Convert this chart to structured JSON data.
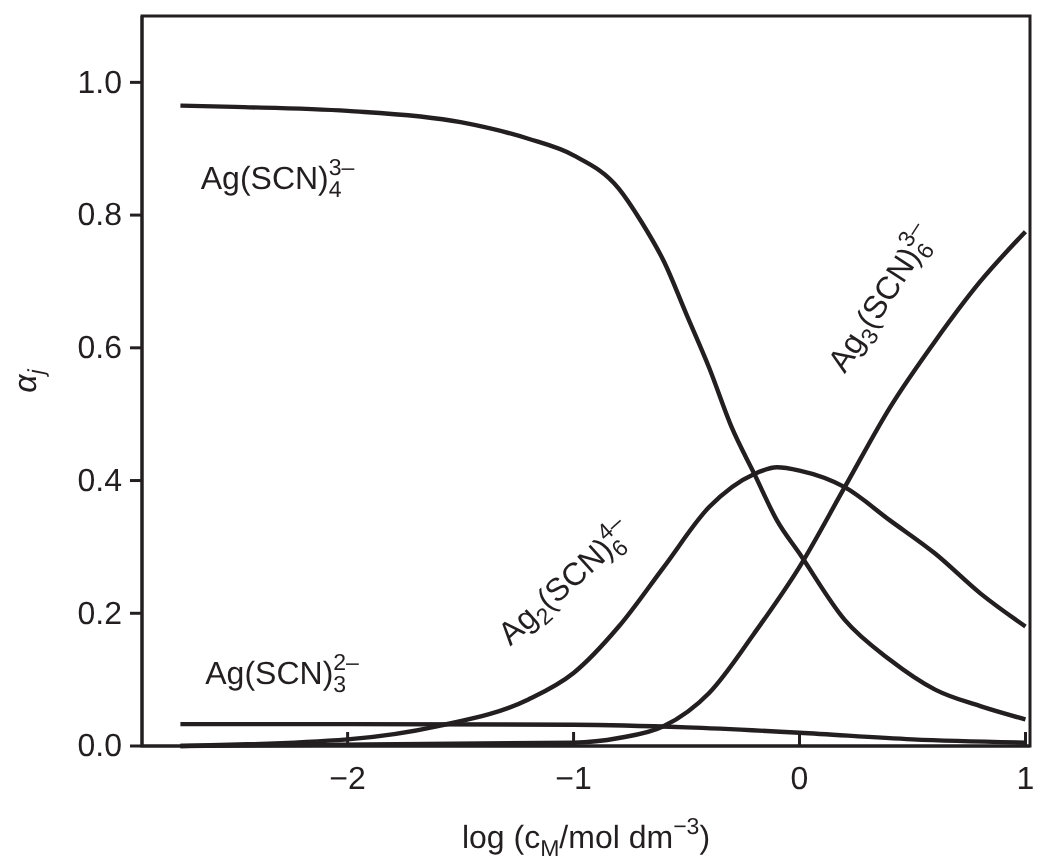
{
  "chart_data": {
    "type": "line",
    "xlabel": "log (c$_{M}$/mol dm$^{−3}$)",
    "ylabel": "α$_{j}$",
    "xlim": [
      -2.91,
      1.02
    ],
    "ylim": [
      0,
      1.1
    ],
    "xticks": [
      {
        "value": -2,
        "label": "−2"
      },
      {
        "value": -1,
        "label": "−1"
      },
      0,
      1
    ],
    "yticks": [
      {
        "value": 0,
        "label": "0.0"
      },
      0.2,
      0.4,
      0.6,
      0.8,
      {
        "value": 1,
        "label": "1.0"
      }
    ],
    "grid": false,
    "legend": false,
    "marker": "none",
    "line_style": "solid",
    "series": [
      {
        "name": "Ag(SCN)$_{4}$$^{3–}$",
        "color": "#231f20",
        "x": [
          -2.74,
          -2.5,
          -2,
          -1.5,
          -1.2,
          -1,
          -0.8,
          -0.7,
          -0.6,
          -0.5,
          -0.4,
          -0.3,
          -0.2,
          -0.1,
          0,
          0.2,
          0.4,
          0.6,
          0.8,
          1.0
        ],
        "values": [
          0.965,
          0.963,
          0.957,
          0.94,
          0.915,
          0.89,
          0.84,
          0.79,
          0.73,
          0.65,
          0.57,
          0.48,
          0.41,
          0.34,
          0.29,
          0.19,
          0.13,
          0.085,
          0.06,
          0.04
        ]
      },
      {
        "name": "Ag(SCN)$_{3}$$^{2–}$",
        "color": "#231f20",
        "x": [
          -2.74,
          -2,
          -1,
          -0.5,
          0,
          0.5,
          1.0
        ],
        "values": [
          0.033,
          0.033,
          0.032,
          0.028,
          0.02,
          0.01,
          0.005
        ]
      },
      {
        "name": "Ag$_{2}$(SCN)$_{6}$$^{4–}$",
        "color": "#231f20",
        "x": [
          -2.74,
          -2,
          -1.6,
          -1.2,
          -1,
          -0.8,
          -0.6,
          -0.4,
          -0.2,
          -0.1,
          0,
          0.2,
          0.4,
          0.6,
          0.8,
          1.0
        ],
        "values": [
          0.0,
          0.01,
          0.03,
          0.07,
          0.11,
          0.18,
          0.27,
          0.36,
          0.41,
          0.42,
          0.415,
          0.39,
          0.34,
          0.29,
          0.23,
          0.18
        ]
      },
      {
        "name": "Ag$_{3}$(SCN)$_{6}$$^{3–}$",
        "color": "#231f20",
        "x": [
          -2.74,
          -1,
          -0.8,
          -0.6,
          -0.4,
          -0.2,
          0,
          0.2,
          0.4,
          0.6,
          0.8,
          1.0
        ],
        "values": [
          0,
          0.005,
          0.012,
          0.03,
          0.08,
          0.17,
          0.27,
          0.39,
          0.51,
          0.61,
          0.7,
          0.775
        ]
      }
    ]
  }
}
